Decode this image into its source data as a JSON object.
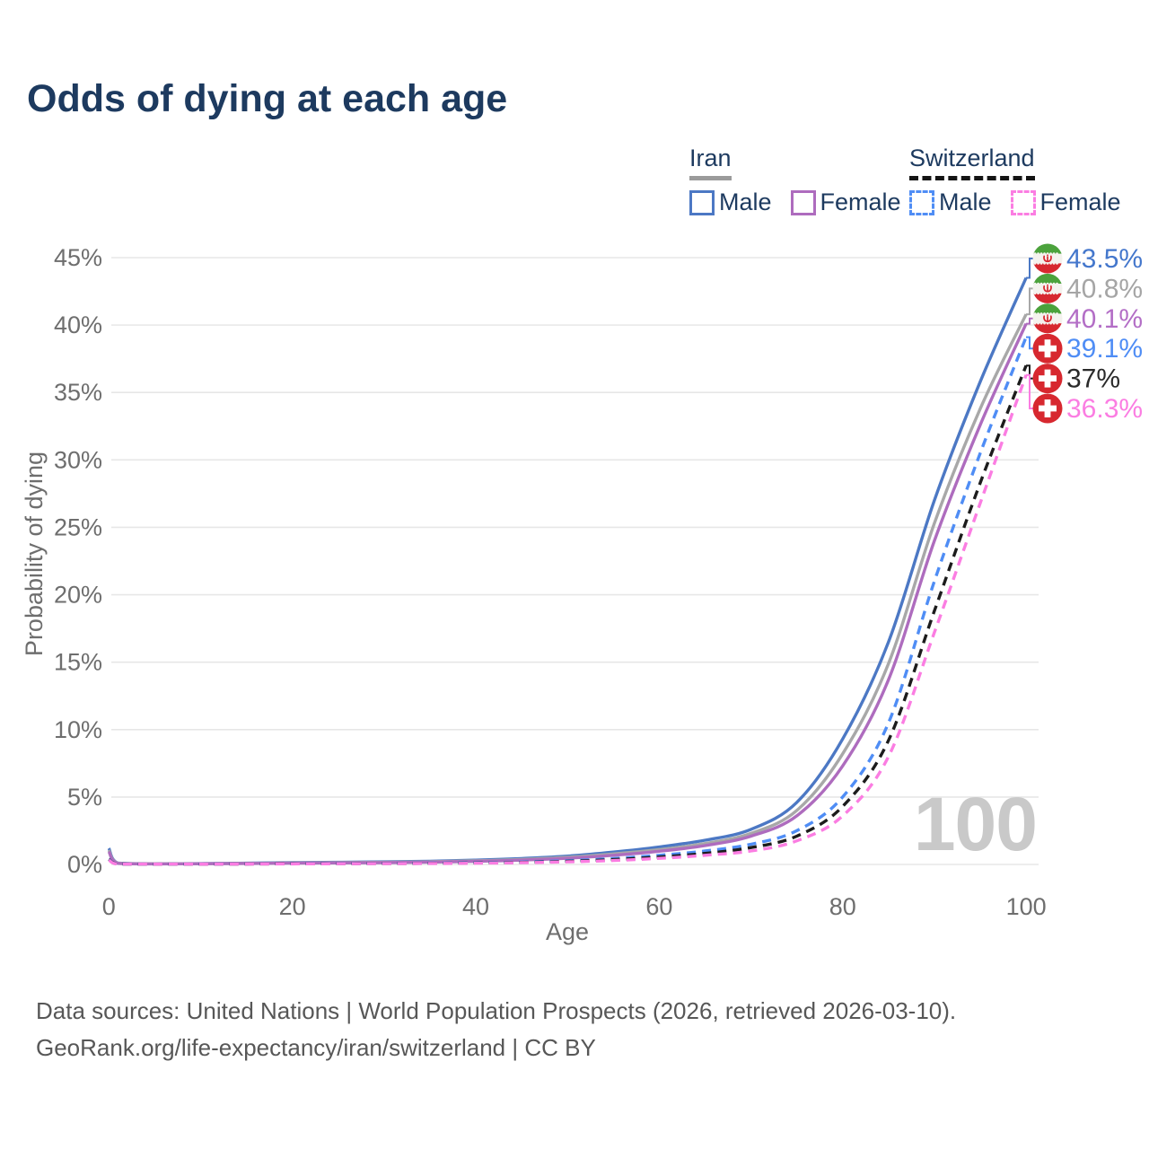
{
  "title": "Odds of dying at each age",
  "legend": {
    "groups": [
      {
        "country": "Iran",
        "line_style": "solid",
        "line_color": "#9b9b9b",
        "items": [
          {
            "label": "Male",
            "color": "#4c78c4",
            "style": "solid"
          },
          {
            "label": "Female",
            "color": "#ae6cbe",
            "style": "solid"
          }
        ]
      },
      {
        "country": "Switzerland",
        "line_style": "dashed",
        "line_color": "#141414",
        "items": [
          {
            "label": "Male",
            "color": "#4f8df5",
            "style": "dashed"
          },
          {
            "label": "Female",
            "color": "#fb7de2",
            "style": "dashed"
          }
        ]
      }
    ]
  },
  "chart_data": {
    "type": "line",
    "title": "Odds of dying at each age",
    "xlabel": "Age",
    "ylabel": "Probability of dying",
    "xlim": [
      0,
      100
    ],
    "ylim": [
      0,
      45
    ],
    "x_ticks": [
      0,
      20,
      40,
      60,
      80,
      100
    ],
    "y_ticks": [
      0,
      5,
      10,
      15,
      20,
      25,
      30,
      35,
      40,
      45
    ],
    "y_tick_suffix": "%",
    "grid": "horizontal",
    "legend_position": "top-right",
    "age_cursor_watermark": "100",
    "x": [
      0,
      1,
      5,
      10,
      15,
      20,
      25,
      30,
      35,
      40,
      45,
      50,
      55,
      60,
      65,
      70,
      75,
      80,
      85,
      90,
      95,
      100
    ],
    "series": [
      {
        "name": "Iran Male",
        "flag": "iran",
        "style": "solid",
        "color": "#4c78c4",
        "label_color": "#4477cc",
        "end_label": "43.5%",
        "values": [
          1.2,
          0.1,
          0.05,
          0.06,
          0.09,
          0.13,
          0.16,
          0.19,
          0.24,
          0.32,
          0.44,
          0.62,
          0.92,
          1.3,
          1.8,
          2.6,
          4.6,
          9.3,
          16.5,
          27.0,
          35.8,
          43.5
        ]
      },
      {
        "name": "Iran Both sexes",
        "flag": "iran",
        "style": "solid",
        "color": "#a8a8a8",
        "label_color": "#a5a5a5",
        "end_label": "40.8%",
        "values": [
          1.05,
          0.09,
          0.05,
          0.05,
          0.08,
          0.11,
          0.13,
          0.16,
          0.2,
          0.27,
          0.37,
          0.53,
          0.78,
          1.1,
          1.55,
          2.3,
          4.0,
          8.2,
          14.9,
          25.3,
          33.8,
          40.8
        ]
      },
      {
        "name": "Iran Female",
        "flag": "iran",
        "style": "solid",
        "color": "#ae6cbe",
        "label_color": "#b36ec6",
        "end_label": "40.1%",
        "values": [
          0.95,
          0.08,
          0.04,
          0.05,
          0.07,
          0.09,
          0.11,
          0.13,
          0.17,
          0.23,
          0.32,
          0.46,
          0.68,
          0.98,
          1.4,
          2.1,
          3.6,
          7.3,
          13.7,
          24.0,
          32.6,
          40.1
        ]
      },
      {
        "name": "Switzerland Male",
        "flag": "switzerland",
        "style": "dashed",
        "color": "#4f8df5",
        "label_color": "#4f8df5",
        "end_label": "39.1%",
        "values": [
          0.4,
          0.03,
          0.02,
          0.02,
          0.04,
          0.06,
          0.07,
          0.08,
          0.1,
          0.13,
          0.18,
          0.28,
          0.44,
          0.68,
          1.0,
          1.5,
          2.5,
          5.0,
          10.5,
          21.0,
          30.5,
          39.1
        ]
      },
      {
        "name": "Switzerland Both sexes",
        "flag": "switzerland",
        "style": "dashed",
        "color": "#1c1c1c",
        "label_color": "#2a2a2a",
        "end_label": "37%",
        "values": [
          0.37,
          0.03,
          0.02,
          0.02,
          0.03,
          0.05,
          0.06,
          0.07,
          0.08,
          0.11,
          0.15,
          0.23,
          0.36,
          0.55,
          0.82,
          1.25,
          2.1,
          4.3,
          9.2,
          18.8,
          28.3,
          37.0
        ]
      },
      {
        "name": "Switzerland Female",
        "flag": "switzerland",
        "style": "dashed",
        "color": "#fb7de2",
        "label_color": "#fb7de2",
        "end_label": "36.3%",
        "values": [
          0.33,
          0.02,
          0.02,
          0.02,
          0.03,
          0.04,
          0.05,
          0.06,
          0.07,
          0.09,
          0.13,
          0.19,
          0.29,
          0.45,
          0.68,
          1.0,
          1.75,
          3.6,
          8.0,
          17.2,
          26.8,
          36.3
        ]
      }
    ]
  },
  "footer": {
    "line1": "Data sources: United Nations | World Population Prospects (2026, retrieved 2026-03-10).",
    "line2": "GeoRank.org/life-expectancy/iran/switzerland | CC BY"
  }
}
